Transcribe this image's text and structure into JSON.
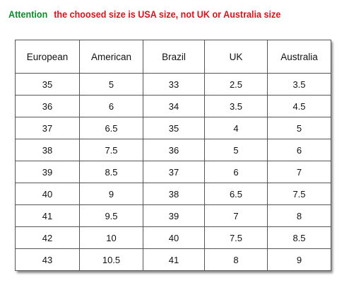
{
  "notice": {
    "attention": "Attention",
    "message": "the choosed size is USA size, not  UK or  Australia size"
  },
  "table": {
    "headers": [
      "European",
      "American",
      "Brazil",
      "UK",
      "Australia"
    ],
    "rows": [
      [
        "35",
        "5",
        "33",
        "2.5",
        "3.5"
      ],
      [
        "36",
        "6",
        "34",
        "3.5",
        "4.5"
      ],
      [
        "37",
        "6.5",
        "35",
        "4",
        "5"
      ],
      [
        "38",
        "7.5",
        "36",
        "5",
        "6"
      ],
      [
        "39",
        "8.5",
        "37",
        "6",
        "7"
      ],
      [
        "40",
        "9",
        "38",
        "6.5",
        "7.5"
      ],
      [
        "41",
        "9.5",
        "39",
        "7",
        "8"
      ],
      [
        "42",
        "10",
        "40",
        "7.5",
        "8.5"
      ],
      [
        "43",
        "10.5",
        "41",
        "8",
        "9"
      ]
    ]
  },
  "colors": {
    "attention": "#0d8a2c",
    "message": "#d4141c",
    "border": "#555555"
  }
}
